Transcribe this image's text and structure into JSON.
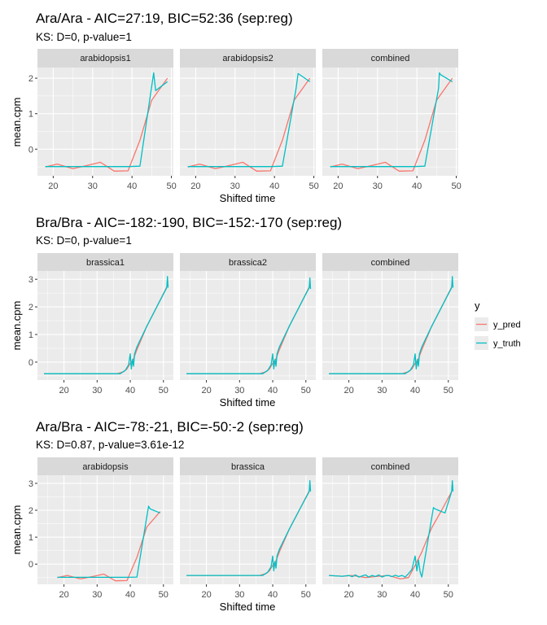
{
  "chart_data": {
    "type": "line",
    "colors": {
      "y_pred": "#F8766D",
      "y_truth": "#00BFC4",
      "panel_bg": "#EBEBEB",
      "strip_bg": "#D9D9D9",
      "grid": "#FFFFFF"
    },
    "legend": {
      "title": "y",
      "position": "right",
      "entries": [
        "y_pred",
        "y_truth"
      ]
    },
    "rows": [
      {
        "title": "Ara/Ara - AIC=27:19, BIC=52:36 (sep:reg)",
        "subtitle": "KS: D=0, p-value=1",
        "xlabel": "Shifted time",
        "ylabel": "mean.cpm",
        "xlim": [
          16,
          50.5
        ],
        "ylim": [
          -0.75,
          2.3
        ],
        "xticks": [
          20,
          30,
          40,
          50
        ],
        "yticks": [
          0,
          1,
          2
        ],
        "panels": [
          {
            "label": "arabidopsis1",
            "series": [
              {
                "name": "y_pred",
                "x": [
                  18,
                  21,
                  25,
                  29,
                  32,
                  35.5,
                  39,
                  42,
                  45,
                  49
                ],
                "y": [
                  -0.5,
                  -0.42,
                  -0.55,
                  -0.45,
                  -0.37,
                  -0.62,
                  -0.61,
                  0.25,
                  1.38,
                  2.0
                ]
              },
              {
                "name": "y_truth",
                "x": [
                  18,
                  39,
                  42,
                  45.5,
                  46,
                  49
                ],
                "y": [
                  -0.49,
                  -0.49,
                  -0.48,
                  2.15,
                  1.65,
                  1.9
                ]
              }
            ]
          },
          {
            "label": "arabidopsis2",
            "series": [
              {
                "name": "y_pred",
                "x": [
                  18,
                  21,
                  25,
                  29,
                  32,
                  35.5,
                  39,
                  42,
                  45,
                  49
                ],
                "y": [
                  -0.5,
                  -0.42,
                  -0.55,
                  -0.45,
                  -0.37,
                  -0.62,
                  -0.61,
                  0.25,
                  1.38,
                  2.0
                ]
              },
              {
                "name": "y_truth",
                "x": [
                  18,
                  39,
                  42,
                  45.5,
                  46,
                  49
                ],
                "y": [
                  -0.49,
                  -0.49,
                  -0.48,
                  1.72,
                  2.13,
                  1.9
                ]
              }
            ]
          },
          {
            "label": "combined",
            "series": [
              {
                "name": "y_pred",
                "x": [
                  18,
                  21,
                  25,
                  29,
                  32,
                  35.5,
                  39,
                  42,
                  45,
                  49
                ],
                "y": [
                  -0.5,
                  -0.42,
                  -0.55,
                  -0.45,
                  -0.37,
                  -0.62,
                  -0.61,
                  0.25,
                  1.38,
                  2.0
                ]
              },
              {
                "name": "y_truth",
                "x": [
                  18,
                  39,
                  42,
                  45.5,
                  45.7,
                  46,
                  49
                ],
                "y": [
                  -0.49,
                  -0.49,
                  -0.48,
                  1.72,
                  2.15,
                  2.1,
                  1.9
                ]
              }
            ]
          }
        ]
      },
      {
        "title": "Bra/Bra - AIC=-182:-190, BIC=-152:-170 (sep:reg)",
        "subtitle": "KS: D=0, p-value=1",
        "xlabel": "Shifted time",
        "ylabel": "mean.cpm",
        "xlim": [
          12,
          53
        ],
        "ylim": [
          -0.65,
          3.3
        ],
        "xticks": [
          20,
          30,
          40,
          50
        ],
        "yticks": [
          0,
          1,
          2,
          3
        ],
        "panels": [
          {
            "label": "brassica1",
            "series": [
              {
                "name": "y_pred",
                "x": [
                  14,
                  36,
                  38,
                  39,
                  40,
                  41,
                  42,
                  45,
                  48,
                  51
                ],
                "y": [
                  -0.42,
                  -0.42,
                  -0.35,
                  -0.25,
                  -0.05,
                  0.12,
                  0.45,
                  1.3,
                  2.0,
                  2.72
                ]
              },
              {
                "name": "y_truth",
                "x": [
                  14,
                  37,
                  38.5,
                  39.5,
                  40,
                  40.3,
                  40.7,
                  41,
                  41.3,
                  42,
                  45,
                  48,
                  51,
                  51.2,
                  51.4
                ],
                "y": [
                  -0.42,
                  -0.42,
                  -0.3,
                  -0.1,
                  0.3,
                  -0.25,
                  0.1,
                  -0.15,
                  0.3,
                  0.55,
                  1.3,
                  2.0,
                  2.7,
                  3.1,
                  2.7
                ]
              }
            ]
          },
          {
            "label": "brassica2",
            "series": [
              {
                "name": "y_pred",
                "x": [
                  14,
                  36,
                  38,
                  39,
                  40,
                  41,
                  42,
                  45,
                  48,
                  51
                ],
                "y": [
                  -0.42,
                  -0.42,
                  -0.35,
                  -0.25,
                  -0.05,
                  0.12,
                  0.45,
                  1.3,
                  2.0,
                  2.72
                ]
              },
              {
                "name": "y_truth",
                "x": [
                  14,
                  37,
                  38.5,
                  39.5,
                  40,
                  40.3,
                  40.7,
                  41,
                  41.3,
                  42,
                  45,
                  48,
                  51,
                  51.2,
                  51.4
                ],
                "y": [
                  -0.42,
                  -0.42,
                  -0.3,
                  -0.1,
                  0.3,
                  -0.25,
                  0.1,
                  -0.15,
                  0.3,
                  0.55,
                  1.3,
                  2.0,
                  2.7,
                  3.05,
                  2.65
                ]
              }
            ]
          },
          {
            "label": "combined",
            "series": [
              {
                "name": "y_pred",
                "x": [
                  14,
                  36,
                  38,
                  39,
                  40,
                  41,
                  42,
                  45,
                  48,
                  51
                ],
                "y": [
                  -0.42,
                  -0.42,
                  -0.35,
                  -0.25,
                  -0.05,
                  0.12,
                  0.45,
                  1.3,
                  2.0,
                  2.72
                ]
              },
              {
                "name": "y_truth",
                "x": [
                  14,
                  37,
                  38.5,
                  39.5,
                  40,
                  40.3,
                  40.7,
                  41,
                  41.3,
                  42,
                  45,
                  48,
                  51,
                  51.2,
                  51.4
                ],
                "y": [
                  -0.42,
                  -0.42,
                  -0.3,
                  -0.1,
                  0.3,
                  -0.25,
                  0.1,
                  -0.15,
                  0.3,
                  0.55,
                  1.3,
                  2.0,
                  2.7,
                  3.1,
                  2.7
                ]
              }
            ]
          }
        ]
      },
      {
        "title": "Ara/Bra - AIC=-78:-21, BIC=-50:-2 (sep:reg)",
        "subtitle": "KS: D=0.87, p-value=3.61e-12",
        "xlabel": "Shifted time",
        "ylabel": "mean.cpm",
        "xlim": [
          12,
          53
        ],
        "ylim": [
          -0.75,
          3.3
        ],
        "xticks": [
          20,
          30,
          40,
          50
        ],
        "yticks": [
          0,
          1,
          2,
          3
        ],
        "panels": [
          {
            "label": "arabidopsis",
            "series": [
              {
                "name": "y_pred",
                "x": [
                  18,
                  21,
                  25,
                  29,
                  32,
                  35.5,
                  39,
                  42,
                  45,
                  49
                ],
                "y": [
                  -0.5,
                  -0.42,
                  -0.55,
                  -0.45,
                  -0.37,
                  -0.62,
                  -0.61,
                  0.25,
                  1.38,
                  1.95
                ]
              },
              {
                "name": "y_truth",
                "x": [
                  18,
                  39,
                  42,
                  45.5,
                  46,
                  49
                ],
                "y": [
                  -0.49,
                  -0.49,
                  -0.48,
                  2.15,
                  2.05,
                  1.9
                ]
              }
            ]
          },
          {
            "label": "brassica",
            "series": [
              {
                "name": "y_pred",
                "x": [
                  14,
                  36,
                  38,
                  39,
                  40,
                  41,
                  42,
                  45,
                  48,
                  51
                ],
                "y": [
                  -0.42,
                  -0.42,
                  -0.35,
                  -0.25,
                  -0.05,
                  0.12,
                  0.45,
                  1.3,
                  2.0,
                  2.72
                ]
              },
              {
                "name": "y_truth",
                "x": [
                  14,
                  37,
                  38.5,
                  39.5,
                  40,
                  40.3,
                  40.7,
                  41,
                  41.3,
                  42,
                  45,
                  48,
                  51,
                  51.2,
                  51.4
                ],
                "y": [
                  -0.42,
                  -0.42,
                  -0.3,
                  -0.1,
                  0.3,
                  -0.25,
                  0.1,
                  -0.15,
                  0.3,
                  0.55,
                  1.3,
                  2.0,
                  2.7,
                  3.1,
                  2.7
                ]
              }
            ]
          },
          {
            "label": "combined",
            "series": [
              {
                "name": "y_pred",
                "x": [
                  14,
                  18,
                  21,
                  25,
                  29,
                  32,
                  35.5,
                  38,
                  40,
                  42,
                  45,
                  48,
                  51
                ],
                "y": [
                  -0.42,
                  -0.45,
                  -0.42,
                  -0.5,
                  -0.45,
                  -0.42,
                  -0.55,
                  -0.5,
                  -0.05,
                  0.45,
                  1.35,
                  2.0,
                  2.7
                ]
              },
              {
                "name": "y_truth",
                "x": [
                  14,
                  18,
                  20,
                  21,
                  22,
                  23,
                  24,
                  25,
                  26,
                  27,
                  28,
                  29,
                  30,
                  31,
                  32,
                  33,
                  34,
                  35,
                  36,
                  37,
                  38,
                  39,
                  40,
                  40.5,
                  41,
                  41.5,
                  42,
                  45.5,
                  46,
                  49,
                  51,
                  51.2,
                  51.4
                ],
                "y": [
                  -0.42,
                  -0.45,
                  -0.42,
                  -0.47,
                  -0.4,
                  -0.48,
                  -0.44,
                  -0.4,
                  -0.48,
                  -0.42,
                  -0.46,
                  -0.4,
                  -0.48,
                  -0.43,
                  -0.42,
                  -0.47,
                  -0.41,
                  -0.46,
                  -0.42,
                  -0.48,
                  -0.35,
                  -0.2,
                  0.3,
                  -0.25,
                  0.15,
                  -0.3,
                  -0.48,
                  2.1,
                  2.05,
                  1.9,
                  2.7,
                  3.1,
                  2.7
                ]
              }
            ]
          }
        ]
      }
    ]
  }
}
